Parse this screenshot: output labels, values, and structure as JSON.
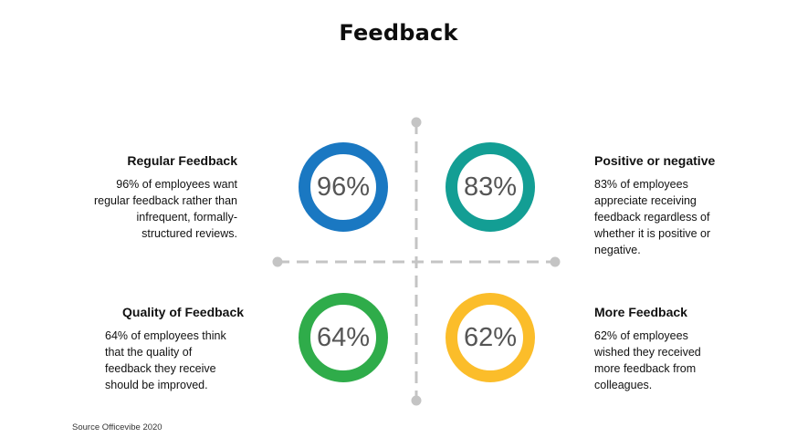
{
  "title": "Feedback",
  "source": "Source Officevibe 2020",
  "colors": {
    "axis": "#c4c4c4",
    "blue": "#1a78c2",
    "teal": "#139e94",
    "green": "#2fac4a",
    "yellow": "#fbbd2a"
  },
  "quadrants": {
    "top_left": {
      "heading": "Regular Feedback",
      "percent": "96%",
      "text": "96% of employees want regular feedback rather than infrequent, formally-structured reviews."
    },
    "top_right": {
      "heading": "Positive or negative",
      "percent": "83%",
      "text": "83% of employees appreciate receiving feedback regardless of whether it is positive or negative."
    },
    "bottom_left": {
      "heading": "Quality of Feedback",
      "percent": "64%",
      "text": "64% of employees think that the quality of feedback they receive should be improved."
    },
    "bottom_right": {
      "heading": "More Feedback",
      "percent": "62%",
      "text": "62% of employees wished they received more feedback from colleagues."
    }
  }
}
